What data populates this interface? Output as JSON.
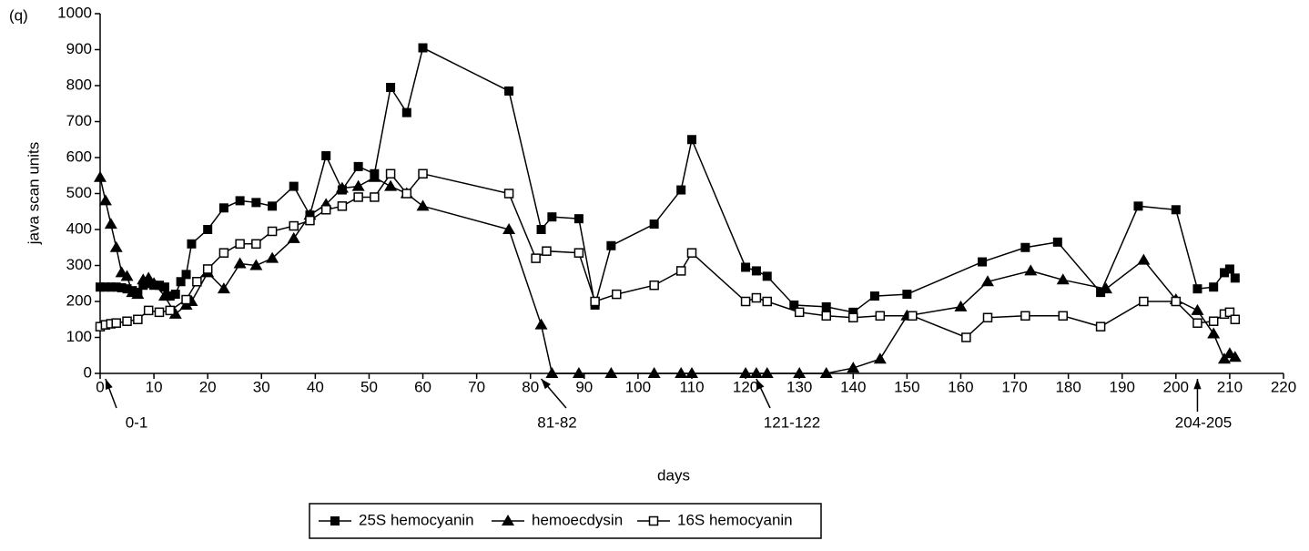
{
  "chart_data": {
    "type": "line",
    "panel_label": "(q)",
    "x_label": "days",
    "y_label": "java scan units",
    "xlim": [
      0,
      220
    ],
    "xticks": [
      0,
      10,
      20,
      30,
      40,
      50,
      60,
      70,
      80,
      90,
      100,
      110,
      120,
      130,
      140,
      150,
      160,
      170,
      180,
      190,
      200,
      210,
      220
    ],
    "ylim": [
      0,
      1000
    ],
    "yticks": [
      0,
      100,
      200,
      300,
      400,
      500,
      600,
      700,
      800,
      900,
      1000
    ],
    "legend_position": "bottom",
    "annotations": [
      {
        "text": "0-1",
        "x": 1
      },
      {
        "text": "81-82",
        "x": 82
      },
      {
        "text": "121-122",
        "x": 122
      },
      {
        "text": "204-205",
        "x": 204
      }
    ],
    "series": [
      {
        "name": "25S hemocyanin",
        "color": "#000000",
        "marker": "square-filled",
        "x": [
          0,
          1,
          2,
          3,
          4,
          5,
          6,
          7,
          8,
          9,
          10,
          11,
          12,
          13,
          14,
          15,
          16,
          17,
          20,
          23,
          26,
          29,
          32,
          36,
          39,
          42,
          45,
          48,
          51,
          54,
          57,
          60,
          76,
          82,
          84,
          89,
          92,
          95,
          103,
          108,
          110,
          120,
          122,
          124,
          129,
          135,
          140,
          144,
          150,
          164,
          172,
          178,
          186,
          193,
          200,
          204,
          207,
          209,
          210,
          211
        ],
        "values": [
          240,
          240,
          240,
          240,
          238,
          235,
          230,
          225,
          245,
          250,
          245,
          245,
          240,
          215,
          220,
          255,
          275,
          360,
          400,
          460,
          480,
          475,
          465,
          520,
          440,
          605,
          510,
          575,
          555,
          795,
          725,
          905,
          785,
          400,
          435,
          430,
          190,
          355,
          415,
          510,
          650,
          295,
          285,
          270,
          190,
          185,
          170,
          215,
          220,
          310,
          350,
          365,
          225,
          465,
          455,
          235,
          240,
          280,
          290,
          265
        ]
      },
      {
        "name": "hemoecdysin",
        "color": "#000000",
        "marker": "triangle-filled",
        "x": [
          0,
          1,
          2,
          3,
          4,
          5,
          6,
          7,
          8,
          9,
          10,
          12,
          14,
          16,
          17,
          20,
          23,
          26,
          29,
          32,
          36,
          39,
          42,
          45,
          48,
          51,
          54,
          57,
          60,
          76,
          82,
          84,
          89,
          95,
          103,
          108,
          110,
          120,
          122,
          124,
          130,
          135,
          140,
          145,
          150,
          160,
          165,
          173,
          179,
          187,
          194,
          200,
          204,
          207,
          209,
          210,
          211
        ],
        "values": [
          545,
          480,
          415,
          350,
          280,
          270,
          225,
          220,
          260,
          265,
          250,
          215,
          165,
          190,
          200,
          280,
          235,
          305,
          300,
          320,
          375,
          440,
          470,
          515,
          520,
          545,
          520,
          500,
          465,
          400,
          135,
          0,
          0,
          0,
          0,
          0,
          0,
          0,
          0,
          0,
          0,
          0,
          15,
          40,
          160,
          185,
          255,
          285,
          260,
          235,
          315,
          205,
          175,
          110,
          40,
          55,
          45
        ]
      },
      {
        "name": "16S hemocyanin",
        "color": "#000000",
        "marker": "square-open",
        "x": [
          0,
          1,
          2,
          3,
          5,
          7,
          9,
          11,
          13,
          16,
          18,
          20,
          23,
          26,
          29,
          32,
          36,
          39,
          42,
          45,
          48,
          51,
          54,
          57,
          60,
          76,
          81,
          83,
          89,
          92,
          96,
          103,
          108,
          110,
          120,
          122,
          124,
          130,
          135,
          140,
          145,
          151,
          161,
          165,
          172,
          179,
          186,
          194,
          200,
          204,
          207,
          209,
          210,
          211
        ],
        "values": [
          130,
          135,
          138,
          140,
          145,
          150,
          175,
          170,
          175,
          205,
          255,
          290,
          335,
          360,
          360,
          395,
          410,
          425,
          455,
          465,
          490,
          490,
          555,
          500,
          555,
          500,
          320,
          340,
          335,
          200,
          220,
          245,
          285,
          335,
          200,
          210,
          200,
          170,
          160,
          155,
          160,
          160,
          100,
          155,
          160,
          160,
          130,
          200,
          200,
          140,
          145,
          165,
          170,
          150
        ]
      }
    ]
  }
}
